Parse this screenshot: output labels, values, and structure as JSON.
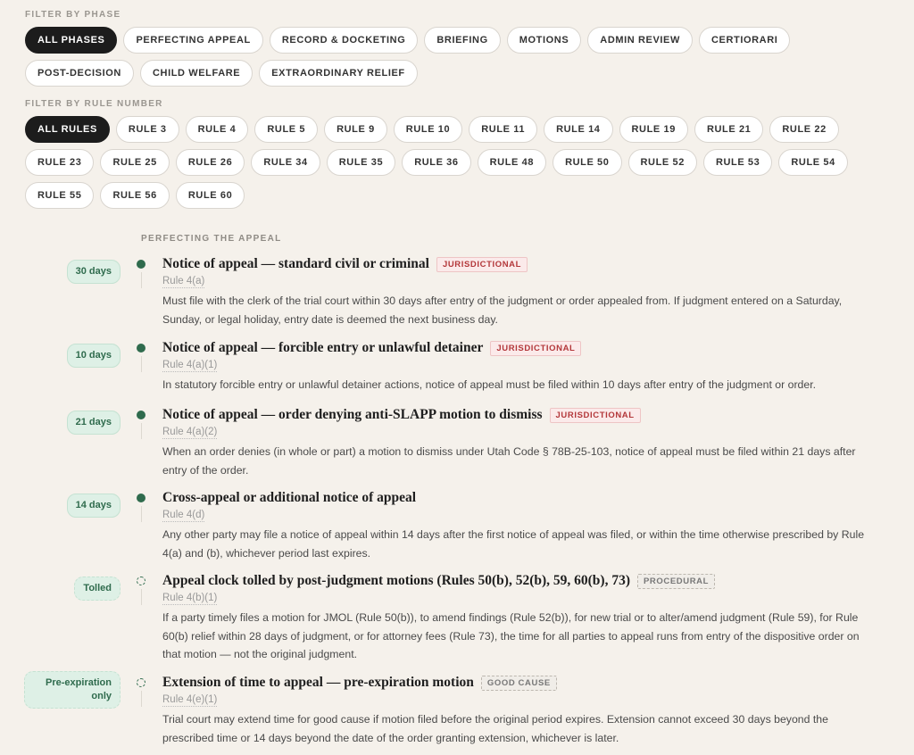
{
  "phase_filter": {
    "label": "FILTER BY PHASE",
    "options": [
      "ALL PHASES",
      "PERFECTING APPEAL",
      "RECORD & DOCKETING",
      "BRIEFING",
      "MOTIONS",
      "ADMIN REVIEW",
      "CERTIORARI",
      "POST-DECISION",
      "CHILD WELFARE",
      "EXTRAORDINARY RELIEF"
    ],
    "selected": "ALL PHASES"
  },
  "rule_filter": {
    "label": "FILTER BY RULE NUMBER",
    "options": [
      "ALL RULES",
      "RULE 3",
      "RULE 4",
      "RULE 5",
      "RULE 9",
      "RULE 10",
      "RULE 11",
      "RULE 14",
      "RULE 19",
      "RULE 21",
      "RULE 22",
      "RULE 23",
      "RULE 25",
      "RULE 26",
      "RULE 34",
      "RULE 35",
      "RULE 36",
      "RULE 48",
      "RULE 50",
      "RULE 52",
      "RULE 53",
      "RULE 54",
      "RULE 55",
      "RULE 56",
      "RULE 60"
    ],
    "selected": "ALL RULES"
  },
  "section": {
    "title": "PERFECTING THE APPEAL",
    "entries": [
      {
        "deadline": "30 days",
        "status": "filled",
        "title": "Notice of appeal — standard civil or criminal",
        "tag": "JURISDICTIONAL",
        "tag_type": "jur",
        "rule": "Rule 4(a)",
        "description": "Must file with the clerk of the trial court within 30 days after entry of the judgment or order appealed from. If judgment entered on a Saturday, Sunday, or legal holiday, entry date is deemed the next business day."
      },
      {
        "deadline": "10 days",
        "status": "filled",
        "title": "Notice of appeal — forcible entry or unlawful detainer",
        "tag": "JURISDICTIONAL",
        "tag_type": "jur",
        "rule": "Rule 4(a)(1)",
        "description": "In statutory forcible entry or unlawful detainer actions, notice of appeal must be filed within 10 days after entry of the judgment or order."
      },
      {
        "deadline": "21 days",
        "status": "filled",
        "title": "Notice of appeal — order denying anti-SLAPP motion to dismiss",
        "tag": "JURISDICTIONAL",
        "tag_type": "jur",
        "rule": "Rule 4(a)(2)",
        "description": "When an order denies (in whole or part) a motion to dismiss under Utah Code § 78B-25-103, notice of appeal must be filed within 21 days after entry of the order."
      },
      {
        "deadline": "14 days",
        "status": "filled",
        "title": "Cross-appeal or additional notice of appeal",
        "tag": "",
        "tag_type": "",
        "rule": "Rule 4(d)",
        "description": "Any other party may file a notice of appeal within 14 days after the first notice of appeal was filed, or within the time otherwise prescribed by Rule 4(a) and (b), whichever period last expires."
      },
      {
        "deadline": "Tolled",
        "status": "ring",
        "title": "Appeal clock tolled by post-judgment motions (Rules 50(b), 52(b), 59, 60(b), 73)",
        "tag": "PROCEDURAL",
        "tag_type": "proc",
        "rule": "Rule 4(b)(1)",
        "description": "If a party timely files a motion for JMOL (Rule 50(b)), to amend findings (Rule 52(b)), for new trial or to alter/amend judgment (Rule 59), for Rule 60(b) relief within 28 days of judgment, or for attorney fees (Rule 73), the time for all parties to appeal runs from entry of the dispositive order on that motion — not the original judgment."
      },
      {
        "deadline": "Pre-expiration only",
        "status": "ring",
        "title": "Extension of time to appeal — pre-expiration motion",
        "tag": "GOOD CAUSE",
        "tag_type": "proc",
        "rule": "Rule 4(e)(1)",
        "description": "Trial court may extend time for good cause if motion filed before the original period expires. Extension cannot exceed 30 days beyond the prescribed time or 14 days beyond the date of the order granting extension, whichever is later."
      }
    ]
  },
  "colors": {
    "accent": "#2f6b4d",
    "active_chip": "#1c1c1c",
    "jurisdictional": "#b3373a",
    "background": "#f5f1eb"
  }
}
